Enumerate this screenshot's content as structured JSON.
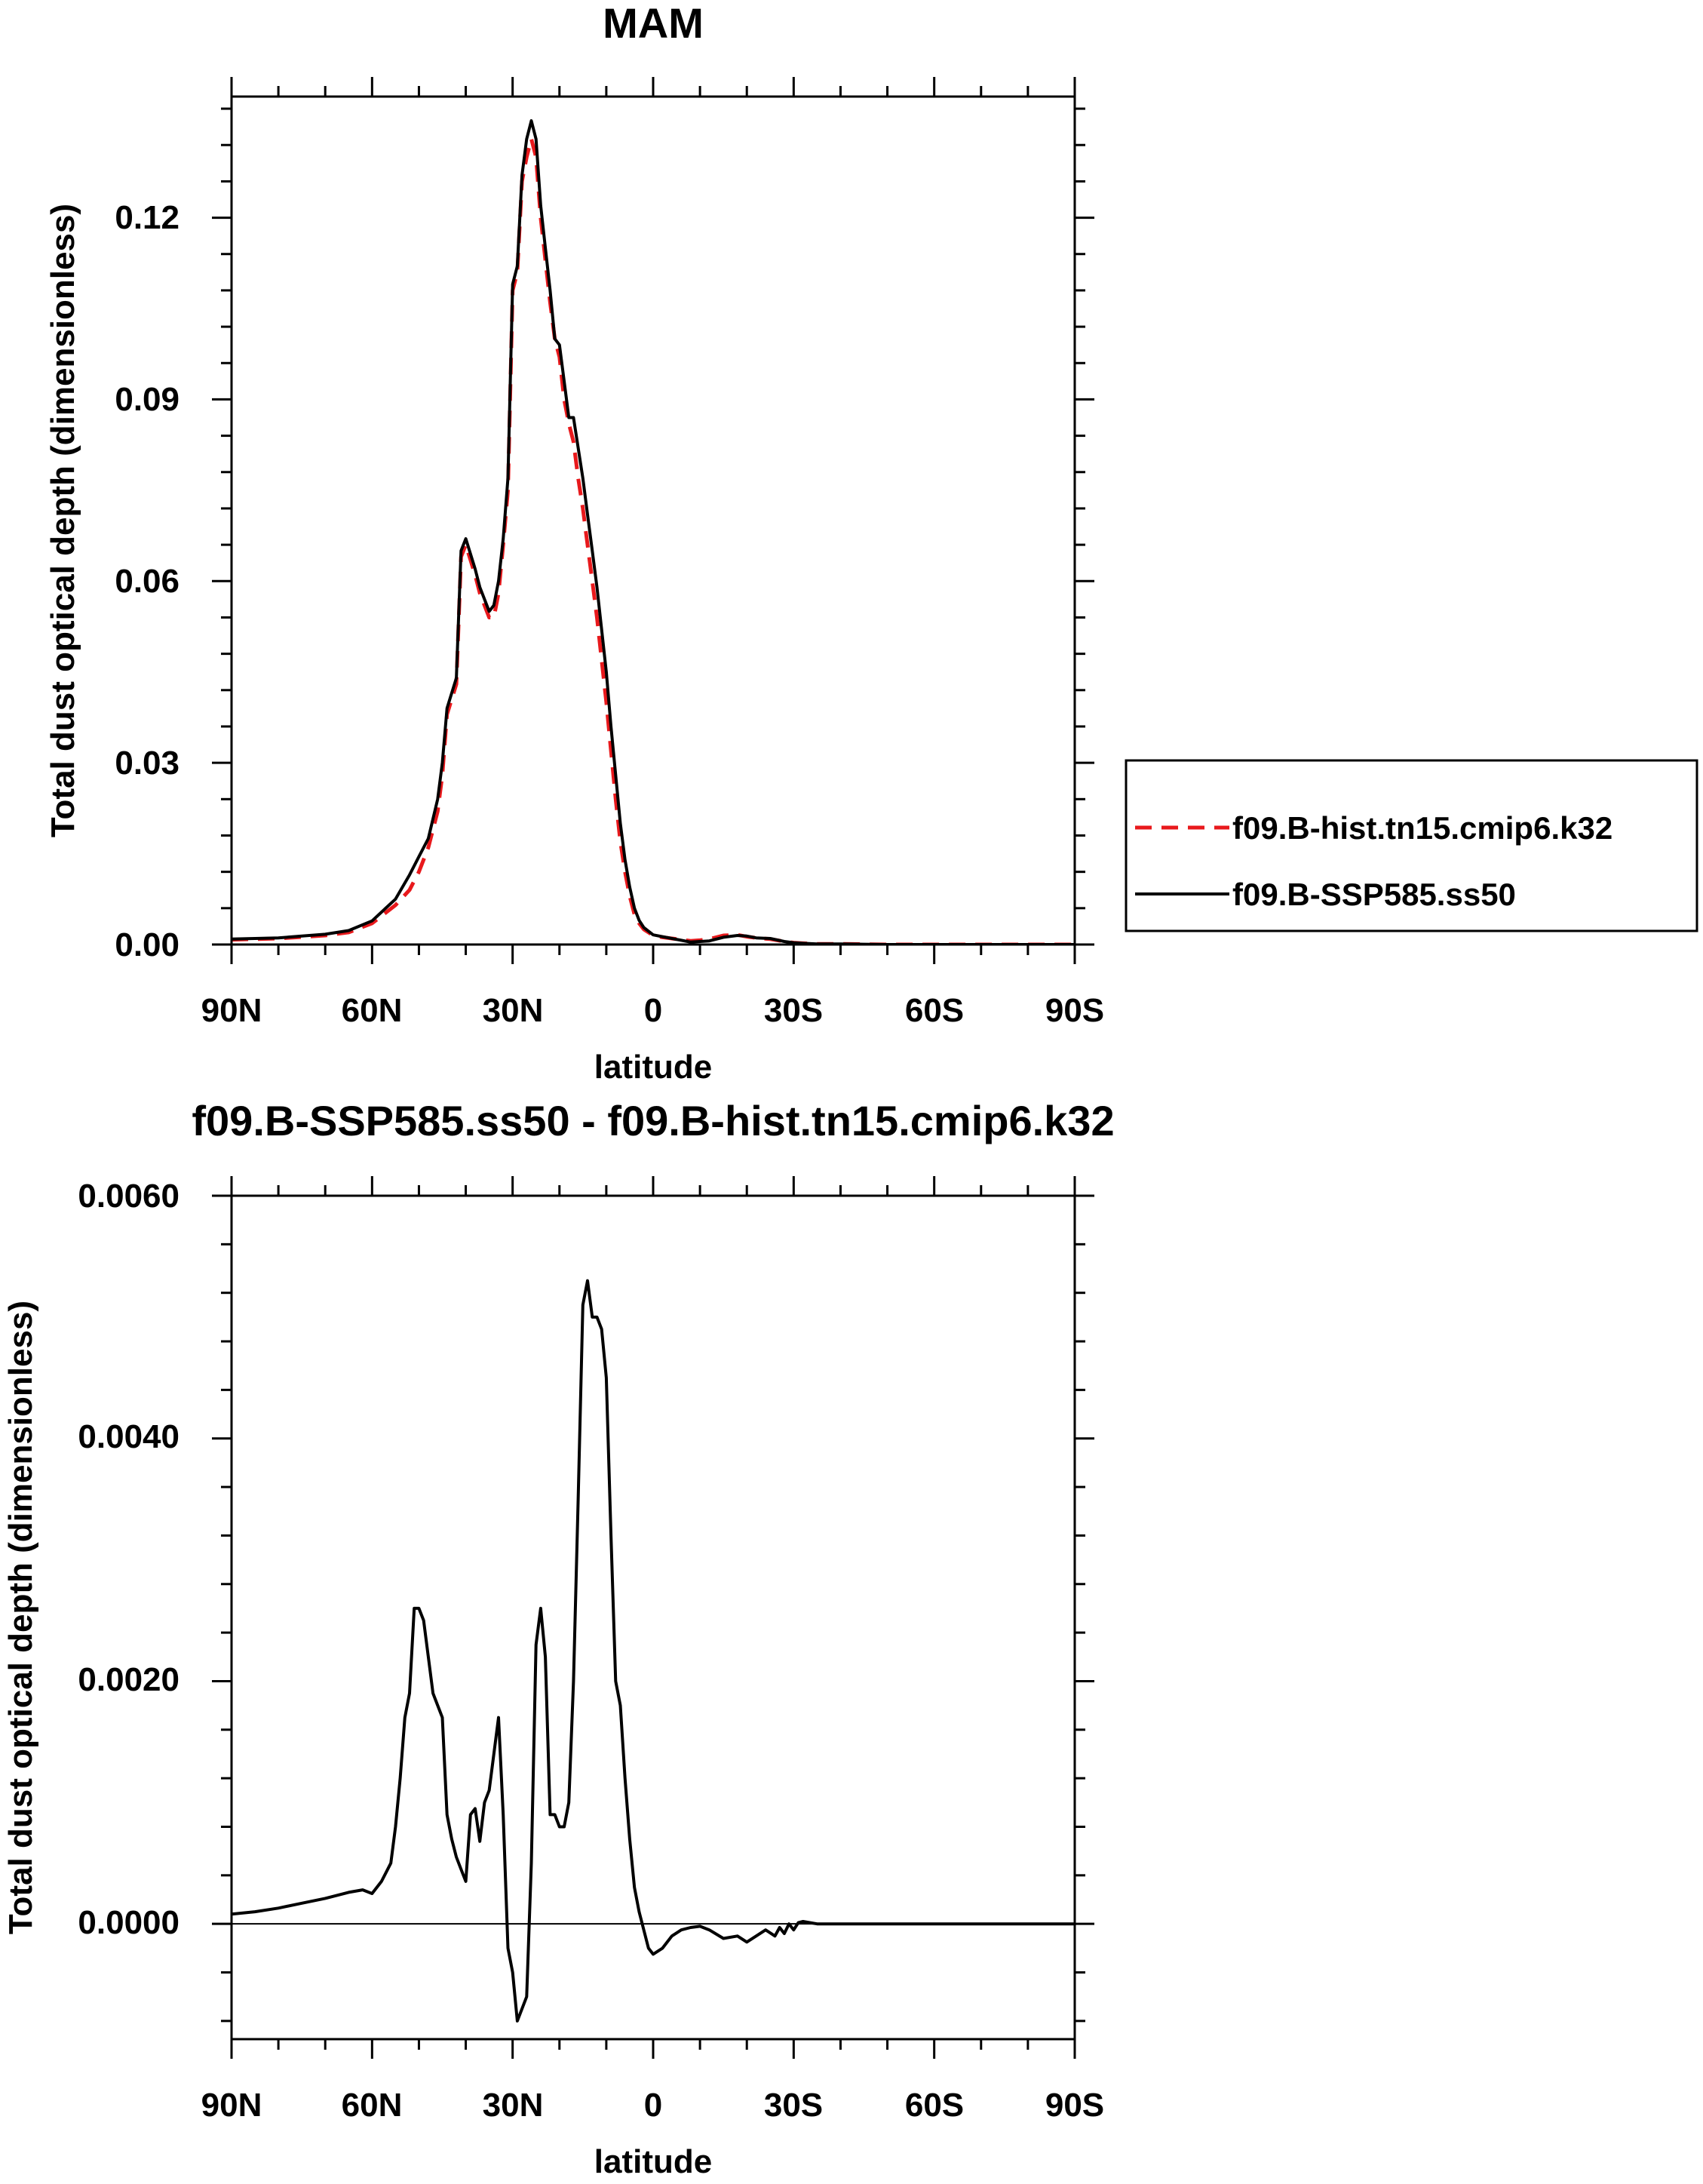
{
  "chart_data": [
    {
      "type": "line",
      "title": "MAM",
      "xlabel": "latitude",
      "ylabel": "Total dust optical depth (dimensionless)",
      "xlim": [
        90,
        -90
      ],
      "ylim": [
        0,
        0.14
      ],
      "xticks": [
        90,
        60,
        30,
        0,
        -30,
        -60,
        -90
      ],
      "xtick_labels": [
        "90N",
        "60N",
        "30N",
        "0",
        "30S",
        "60S",
        "90S"
      ],
      "yticks": [
        0,
        0.03,
        0.06,
        0.09,
        0.12
      ],
      "ytick_labels": [
        "0.00",
        "0.03",
        "0.06",
        "0.09",
        "0.12"
      ],
      "legend": "right",
      "series": [
        {
          "name": "f09.B-hist.tn15.cmip6.k32",
          "color": "#e8191c",
          "style": "dashed",
          "x": [
            90,
            80,
            70,
            65,
            60,
            55,
            52,
            50,
            48,
            46,
            45,
            44,
            42,
            41,
            40,
            38,
            37,
            35,
            34,
            33,
            32,
            31,
            30,
            29,
            28,
            27,
            26,
            25,
            24,
            23,
            22,
            21,
            20,
            19,
            18,
            17,
            16,
            15,
            14,
            13,
            12,
            11,
            10,
            9,
            8,
            7,
            6,
            5,
            4,
            3,
            2,
            1,
            0,
            -2,
            -4,
            -6,
            -8,
            -10,
            -12,
            -15,
            -18,
            -20,
            -22,
            -25,
            -28,
            -30,
            -32,
            -35,
            -40,
            -50,
            -60,
            -70,
            -80,
            -90
          ],
          "y": [
            0.0008,
            0.001,
            0.0015,
            0.002,
            0.0035,
            0.0065,
            0.009,
            0.012,
            0.016,
            0.022,
            0.028,
            0.038,
            0.043,
            0.064,
            0.066,
            0.061,
            0.058,
            0.054,
            0.054,
            0.058,
            0.066,
            0.075,
            0.108,
            0.111,
            0.126,
            0.13,
            0.133,
            0.13,
            0.12,
            0.113,
            0.106,
            0.1,
            0.097,
            0.09,
            0.086,
            0.083,
            0.077,
            0.072,
            0.066,
            0.06,
            0.054,
            0.047,
            0.04,
            0.032,
            0.024,
            0.017,
            0.012,
            0.008,
            0.005,
            0.0035,
            0.0025,
            0.002,
            0.0015,
            0.0012,
            0.001,
            0.0008,
            0.0006,
            0.0007,
            0.0009,
            0.0015,
            0.0016,
            0.0013,
            0.0011,
            0.0009,
            0.0005,
            0.0003,
            0.0002,
            0.0001,
            0.0001,
            0,
            0,
            0,
            0,
            0
          ]
        },
        {
          "name": "f09.B-SSP585.ss50",
          "color": "#000000",
          "style": "solid",
          "x": [
            90,
            80,
            70,
            65,
            60,
            55,
            52,
            50,
            48,
            46,
            45,
            44,
            42,
            41,
            40,
            38,
            37,
            35,
            34,
            33,
            32,
            31,
            30,
            29,
            28,
            27,
            26,
            25,
            24,
            23,
            22,
            21,
            20,
            19,
            18,
            17,
            16,
            15,
            14,
            13,
            12,
            11,
            10,
            9,
            8,
            7,
            6,
            5,
            4,
            3,
            2,
            1,
            0,
            -2,
            -4,
            -6,
            -8,
            -10,
            -12,
            -15,
            -18,
            -20,
            -22,
            -25,
            -28,
            -30,
            -32,
            -35,
            -40,
            -50,
            -60,
            -70,
            -80,
            -90
          ],
          "y": [
            0.0009,
            0.0011,
            0.0017,
            0.0023,
            0.0039,
            0.0075,
            0.0115,
            0.0145,
            0.0175,
            0.024,
            0.03,
            0.039,
            0.044,
            0.065,
            0.067,
            0.062,
            0.059,
            0.055,
            0.056,
            0.06,
            0.067,
            0.077,
            0.109,
            0.112,
            0.127,
            0.133,
            0.136,
            0.133,
            0.122,
            0.115,
            0.108,
            0.1,
            0.099,
            0.093,
            0.087,
            0.087,
            0.082,
            0.077,
            0.071,
            0.065,
            0.059,
            0.052,
            0.045,
            0.036,
            0.028,
            0.02,
            0.014,
            0.0095,
            0.006,
            0.004,
            0.0028,
            0.0022,
            0.0016,
            0.0013,
            0.001,
            0.0007,
            0.0004,
            0.0005,
            0.0006,
            0.0012,
            0.0015,
            0.0014,
            0.0011,
            0.001,
            0.0005,
            0.0003,
            0.0002,
            0.0001,
            0.0001,
            0,
            0,
            0,
            0,
            0
          ]
        }
      ]
    },
    {
      "type": "line",
      "title": "f09.B-SSP585.ss50 - f09.B-hist.tn15.cmip6.k32",
      "xlabel": "latitude",
      "ylabel": "Total dust optical depth (dimensionless)",
      "xlim": [
        90,
        -90
      ],
      "ylim": [
        -0.00095,
        0.006
      ],
      "xticks": [
        90,
        60,
        30,
        0,
        -30,
        -60,
        -90
      ],
      "xtick_labels": [
        "90N",
        "60N",
        "30N",
        "0",
        "30S",
        "60S",
        "90S"
      ],
      "yticks": [
        0,
        0.002,
        0.004,
        0.006
      ],
      "ytick_labels": [
        "0.0000",
        "0.0020",
        "0.0040",
        "0.0060"
      ],
      "series": [
        {
          "name": "difference",
          "color": "#000000",
          "style": "solid",
          "x": [
            90,
            85,
            80,
            75,
            70,
            65,
            62,
            60,
            58,
            56,
            55,
            54,
            53,
            52,
            51,
            50,
            49,
            48,
            47,
            46,
            45,
            44,
            43,
            42,
            41,
            40,
            39,
            38,
            37,
            36,
            35,
            34,
            33,
            32,
            31,
            30,
            29,
            28,
            27,
            26,
            25,
            24,
            23,
            22,
            21,
            20,
            19,
            18,
            17,
            16,
            15,
            14,
            13,
            12,
            11,
            10,
            9,
            8,
            7,
            6,
            5,
            4,
            3,
            2,
            1,
            0,
            -2,
            -4,
            -6,
            -8,
            -10,
            -12,
            -15,
            -18,
            -20,
            -22,
            -24,
            -26,
            -27,
            -28,
            -29,
            -30,
            -31,
            -32,
            -35,
            -40,
            -50,
            -60,
            -70,
            -80,
            -90
          ],
          "y": [
            8e-05,
            0.0001,
            0.00013,
            0.00017,
            0.00021,
            0.00026,
            0.00028,
            0.00025,
            0.00035,
            0.0005,
            0.0008,
            0.0012,
            0.0017,
            0.0019,
            0.0026,
            0.0026,
            0.0025,
            0.0022,
            0.0019,
            0.0018,
            0.0017,
            0.0009,
            0.0007,
            0.00055,
            0.00045,
            0.00035,
            0.0009,
            0.00095,
            0.00068,
            0.001,
            0.0011,
            0.0014,
            0.0017,
            0.0009,
            -0.0002,
            -0.0004,
            -0.0008,
            -0.0007,
            -0.0006,
            0.0005,
            0.0023,
            0.0026,
            0.0022,
            0.0009,
            0.0009,
            0.0008,
            0.0008,
            0.001,
            0.002,
            0.0035,
            0.0051,
            0.0053,
            0.005,
            0.005,
            0.0049,
            0.0045,
            0.0032,
            0.002,
            0.0018,
            0.0012,
            0.0007,
            0.0003,
            0.0001,
            -5e-05,
            -0.0002,
            -0.00025,
            -0.0002,
            -0.0001,
            -5e-05,
            -3e-05,
            -2e-05,
            -5e-05,
            -0.00012,
            -0.0001,
            -0.00015,
            -0.0001,
            -5e-05,
            -0.0001,
            -3e-05,
            -8e-05,
            0,
            -5e-05,
            1e-05,
            2e-05,
            0,
            0,
            0,
            0,
            0,
            0,
            0
          ]
        }
      ]
    }
  ]
}
